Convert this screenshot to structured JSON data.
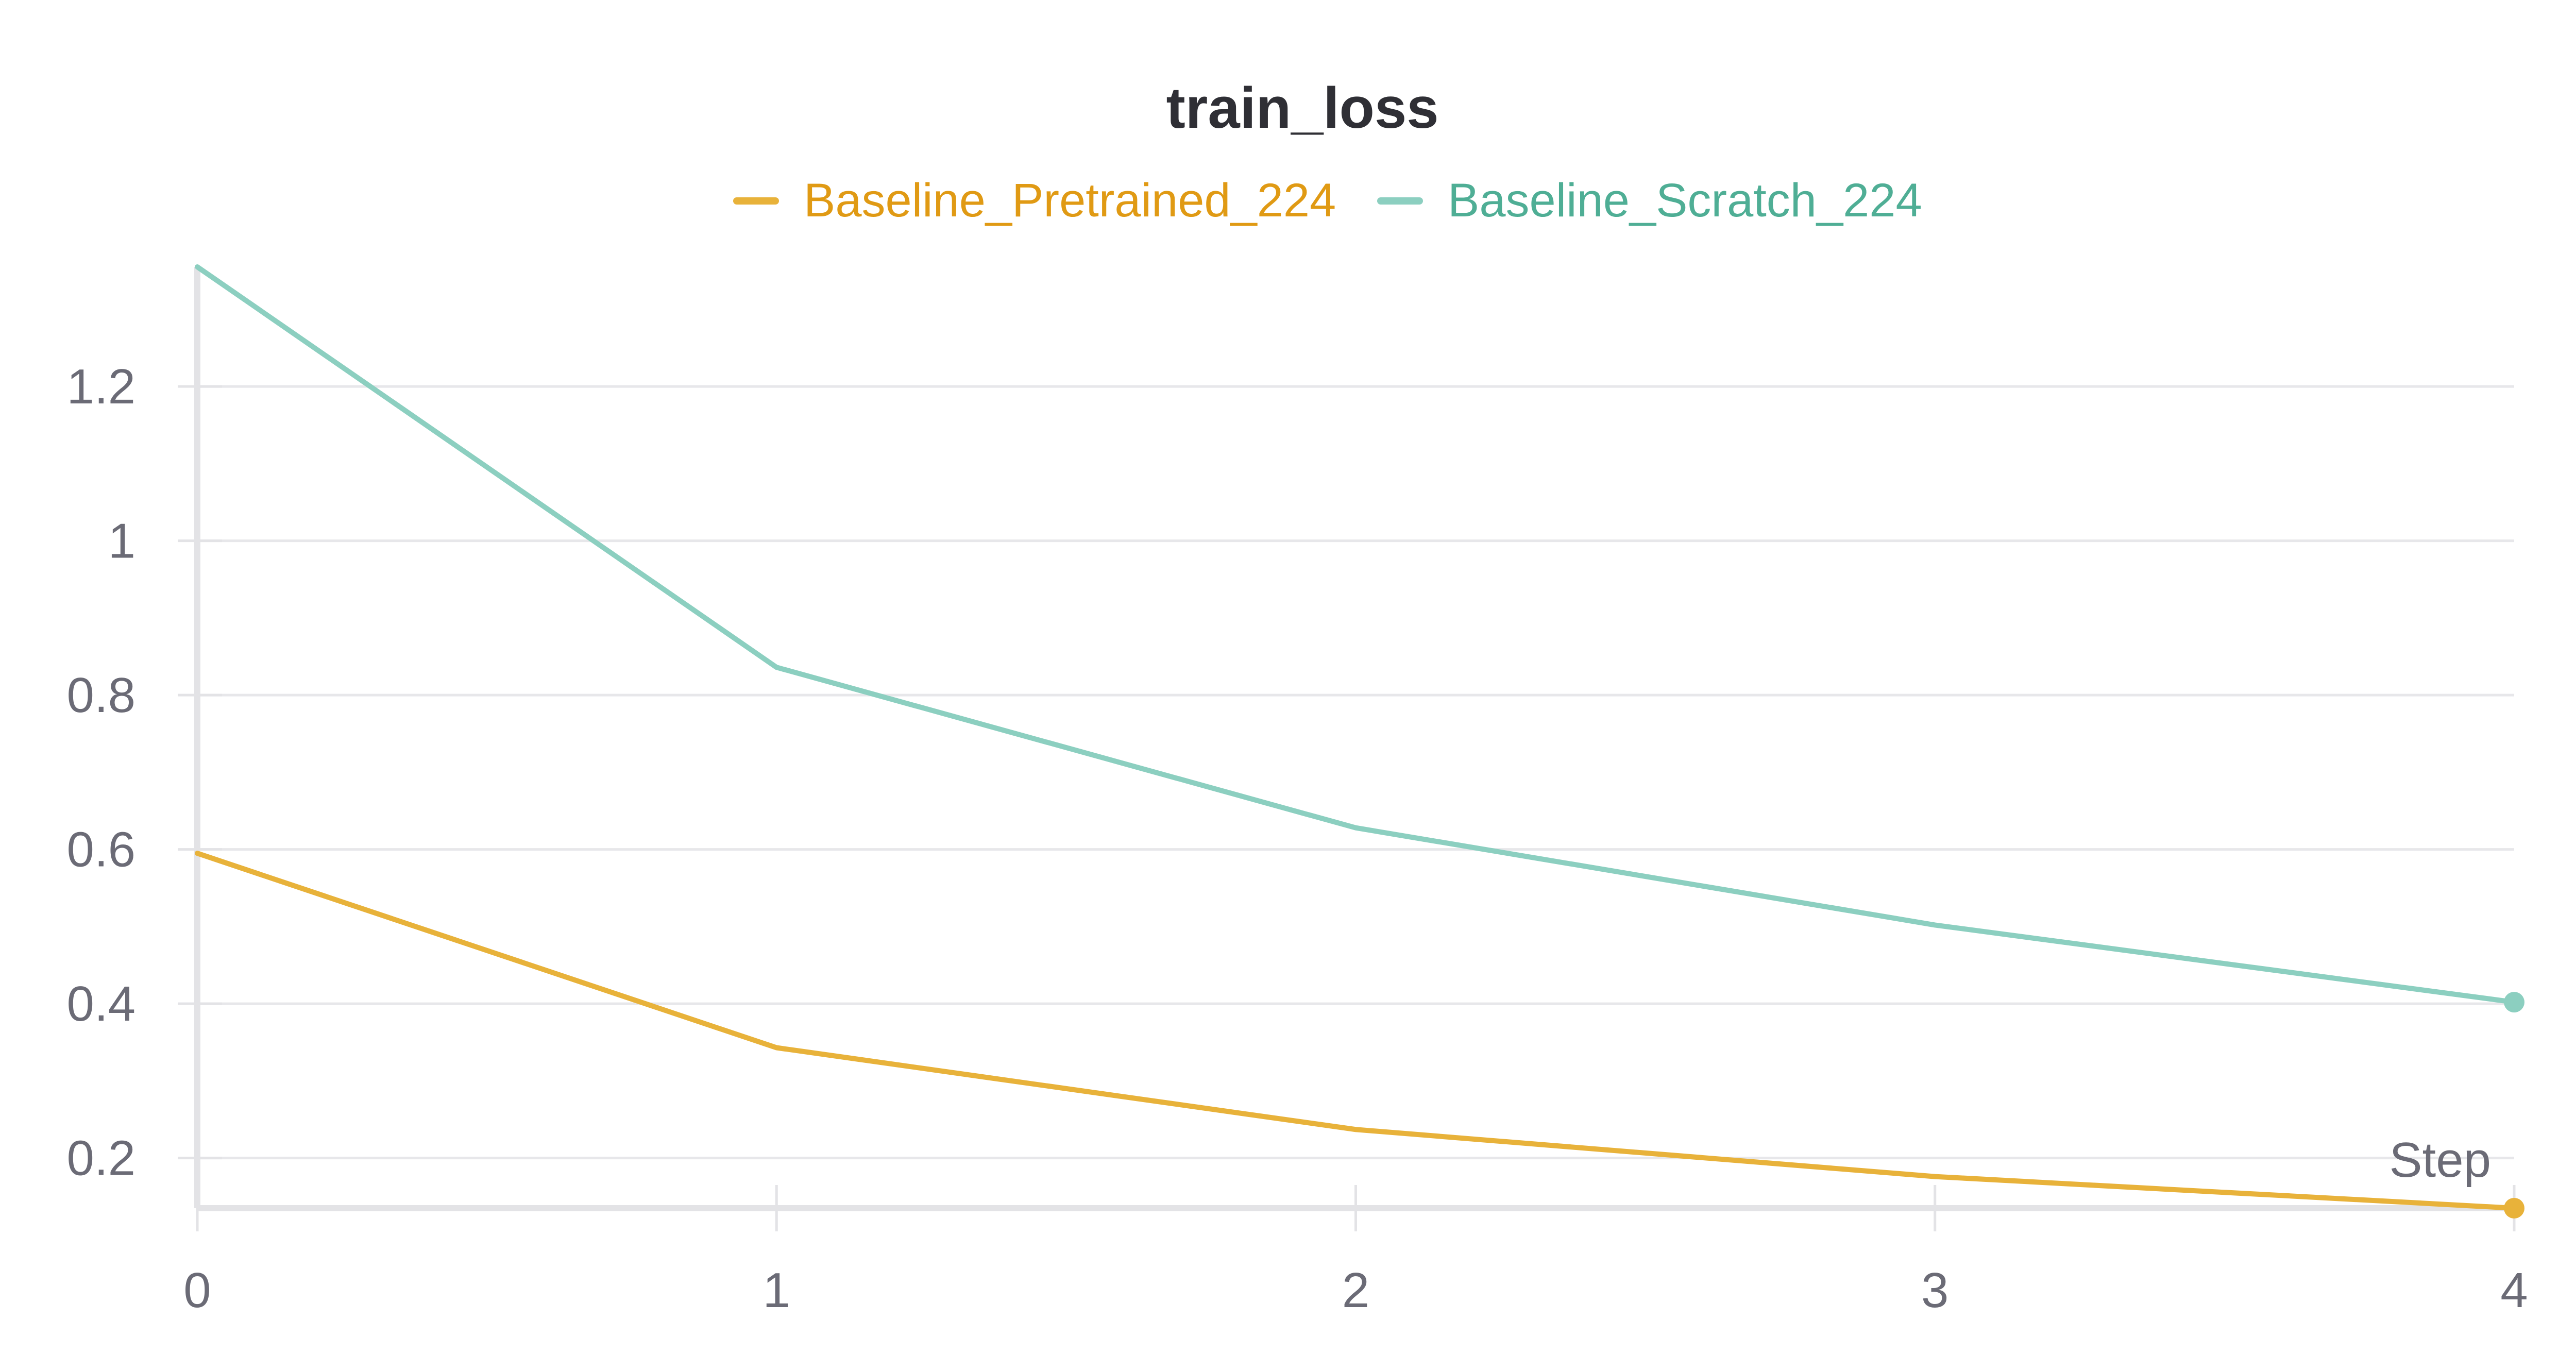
{
  "chart_data": {
    "type": "line",
    "title": "train_loss",
    "xlabel": "Step",
    "ylabel": "",
    "x": [
      0,
      1,
      2,
      3,
      4
    ],
    "xlim": [
      0,
      4
    ],
    "ylim": [
      0.135,
      1.355
    ],
    "x_ticks": [
      0,
      1,
      2,
      3,
      4
    ],
    "y_ticks": [
      0.2,
      0.4,
      0.6,
      0.8,
      1,
      1.2
    ],
    "x_tick_labels": [
      "0",
      "1",
      "2",
      "3",
      "4"
    ],
    "y_tick_labels": [
      "0.2",
      "0.4",
      "0.6",
      "0.8",
      "1",
      "1.2"
    ],
    "grid": true,
    "legend_position": "top-center",
    "series": [
      {
        "name": "Baseline_Pretrained_224",
        "color": "#E8B23A",
        "legend_text_color": "#E09A14",
        "values": [
          0.595,
          0.343,
          0.237,
          0.176,
          0.135
        ]
      },
      {
        "name": "Baseline_Scratch_224",
        "color": "#8CCFC0",
        "legend_text_color": "#4FAE95",
        "values": [
          1.355,
          0.836,
          0.628,
          0.502,
          0.402
        ]
      }
    ]
  }
}
